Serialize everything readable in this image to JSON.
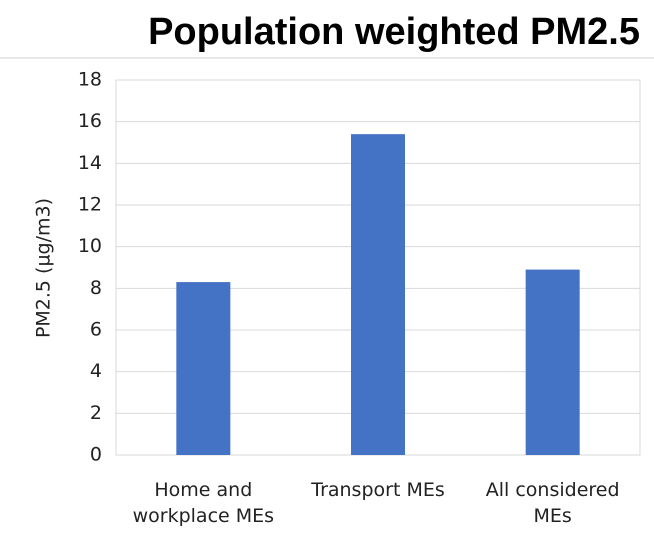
{
  "chart_data": {
    "type": "bar",
    "title": "Population weighted PM2.5",
    "y_label": "PM2.5 (µg/m3)",
    "categories": [
      "Home and workplace MEs",
      "Transport MEs",
      "All considered MEs"
    ],
    "values": [
      8.3,
      15.4,
      8.9
    ],
    "color": "#4472c4",
    "ylim": [
      0,
      18
    ],
    "yticks": [
      0,
      2,
      4,
      6,
      8,
      10,
      12,
      14,
      16,
      18
    ],
    "grid": true
  }
}
